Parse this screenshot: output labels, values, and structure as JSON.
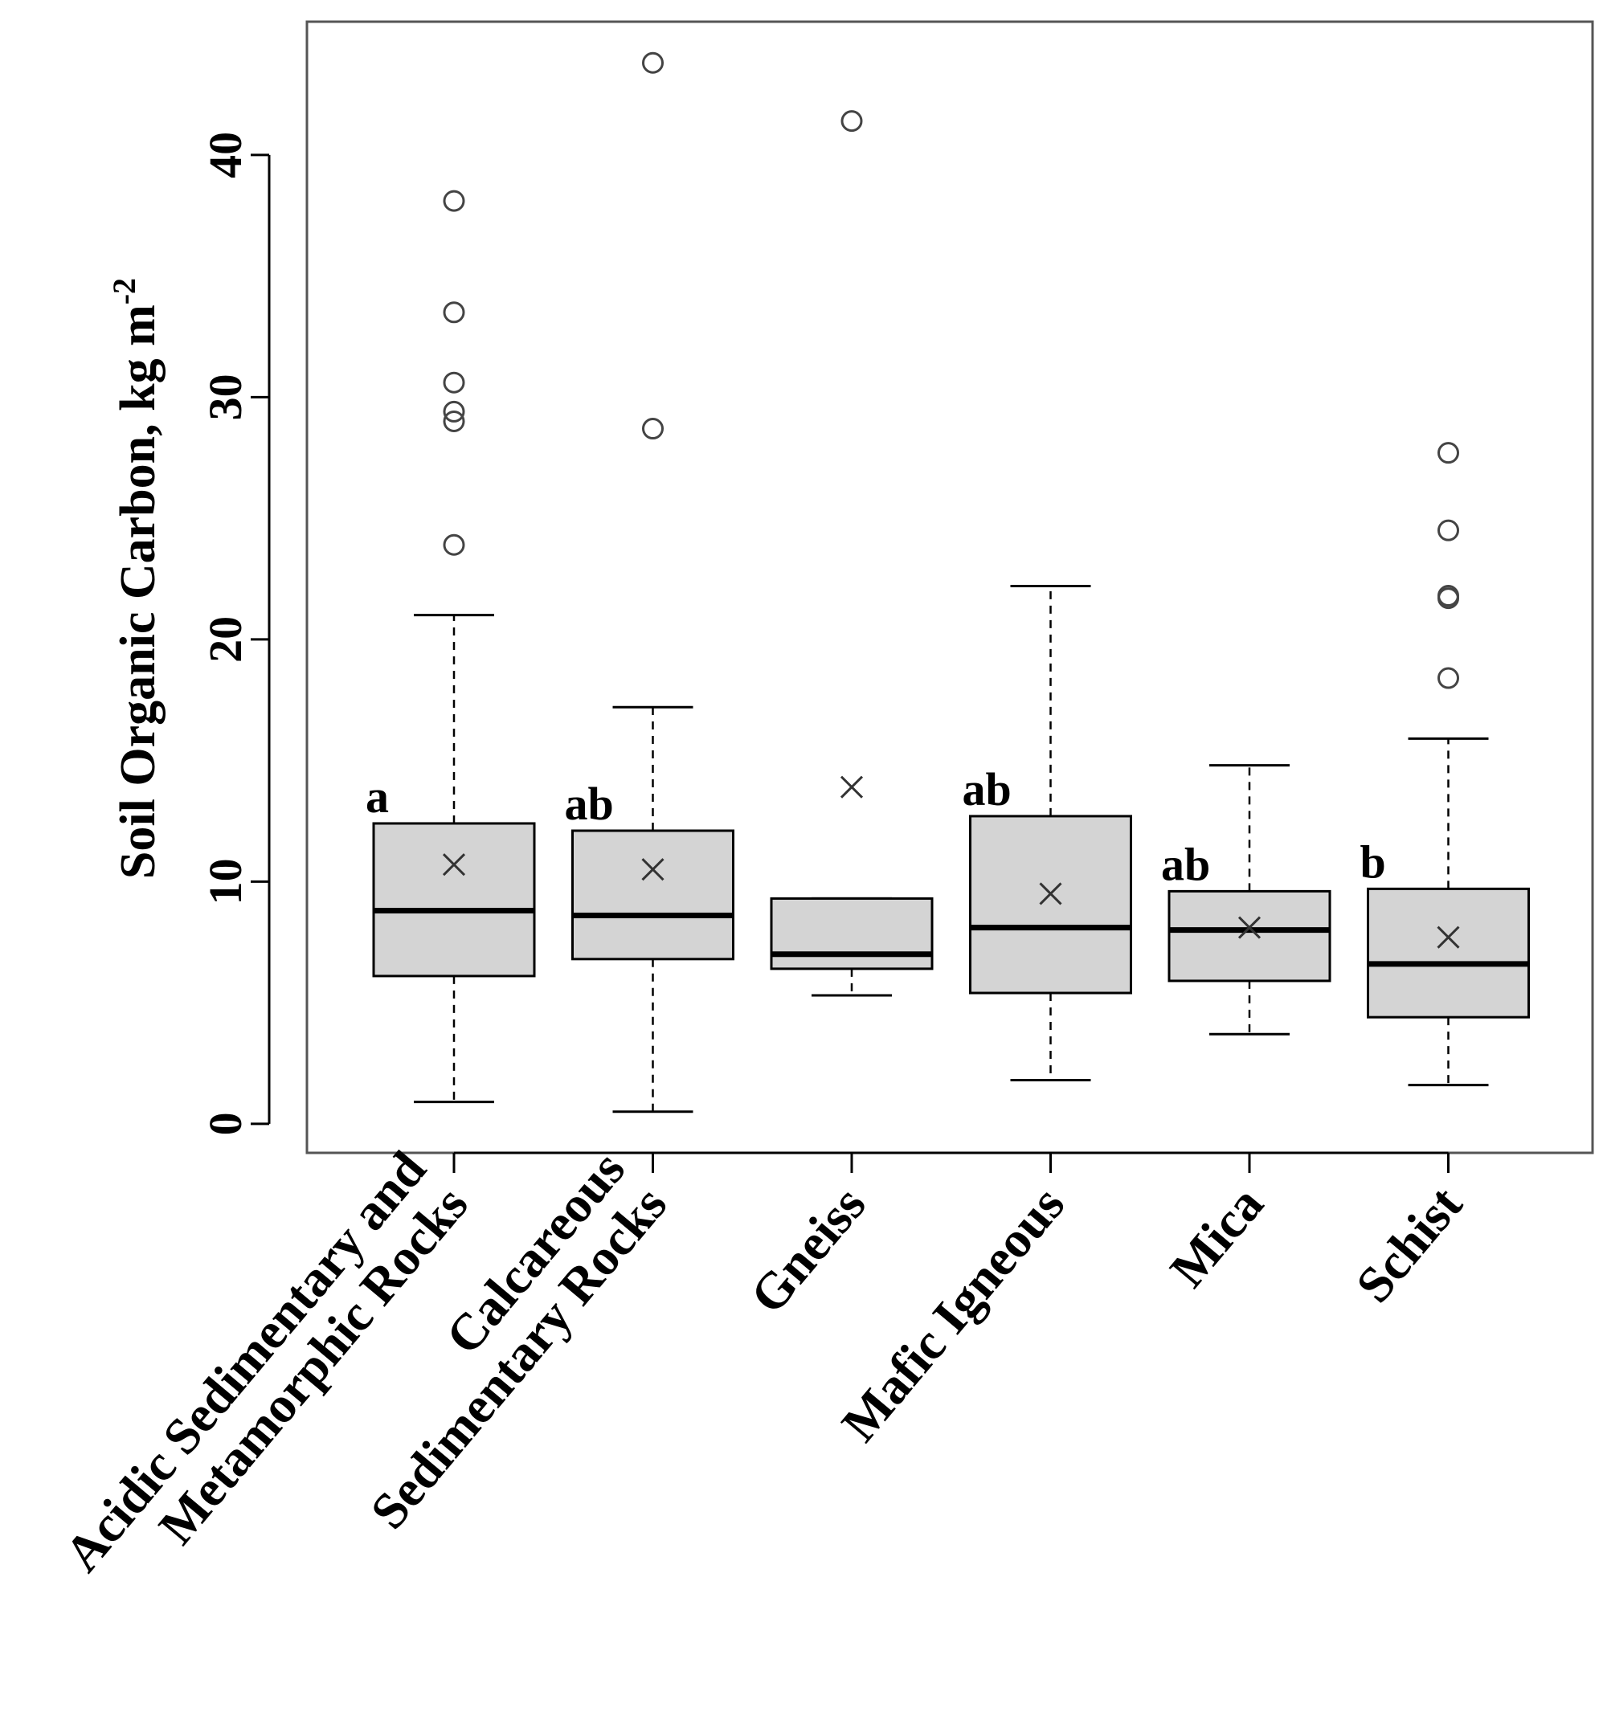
{
  "chart_data": {
    "type": "boxplot",
    "title": "",
    "xlabel": "",
    "ylabel": "Soil Organic Carbon, kg m",
    "ylabel_superscript": "-2",
    "ylim": [
      -1.2,
      45.5
    ],
    "yticks": [
      0,
      10,
      20,
      30,
      40
    ],
    "ytick_labels": [
      "0",
      "10",
      "20",
      "30",
      "40"
    ],
    "grid": false,
    "colors": {
      "box_fill": "#d4d4d4",
      "stroke": "#000000",
      "outlier": "#444444",
      "frame": "#555555"
    },
    "groups": [
      {
        "label_lines": [
          "Acidic Sedimentary and",
          "Metamorphic Rocks"
        ],
        "whisker_low": 0.9,
        "q1": 6.1,
        "median": 8.8,
        "q3": 12.4,
        "whisker_high": 21.0,
        "mean": 10.7,
        "outliers": [
          23.9,
          29.0,
          29.4,
          30.6,
          33.5,
          38.1
        ],
        "significance": "a"
      },
      {
        "label_lines": [
          "Calcareous",
          "Sedimentary Rocks"
        ],
        "whisker_low": 0.5,
        "q1": 6.8,
        "median": 8.6,
        "q3": 12.1,
        "whisker_high": 17.2,
        "mean": 10.5,
        "outliers": [
          28.7,
          43.8
        ],
        "significance": "ab"
      },
      {
        "label_lines": [
          "Gneiss"
        ],
        "whisker_low": 5.3,
        "q1": 6.4,
        "median": 7.0,
        "q3": 9.3,
        "whisker_high": 9.3,
        "mean": 13.9,
        "outliers": [
          41.4
        ],
        "significance": ""
      },
      {
        "label_lines": [
          "Mafic Igneous"
        ],
        "whisker_low": 1.8,
        "q1": 5.4,
        "median": 8.1,
        "q3": 12.7,
        "whisker_high": 22.2,
        "mean": 9.5,
        "outliers": [],
        "significance": "ab"
      },
      {
        "label_lines": [
          "Mica"
        ],
        "whisker_low": 3.7,
        "q1": 5.9,
        "median": 8.0,
        "q3": 9.6,
        "whisker_high": 14.8,
        "mean": 8.1,
        "outliers": [],
        "significance": "ab"
      },
      {
        "label_lines": [
          "Schist"
        ],
        "whisker_low": 1.6,
        "q1": 4.4,
        "median": 6.6,
        "q3": 9.7,
        "whisker_high": 15.9,
        "mean": 7.7,
        "outliers": [
          18.4,
          21.7,
          21.8,
          24.5,
          27.7
        ],
        "significance": "b"
      }
    ]
  }
}
